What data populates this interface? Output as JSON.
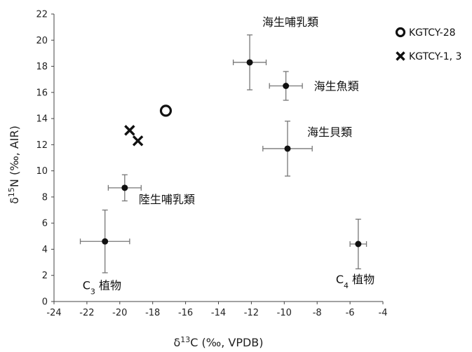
{
  "chart_data": {
    "type": "scatter",
    "xlabel": {
      "prefix": "δ",
      "sup": "13",
      "suffix": "C (‰, VPDB)"
    },
    "ylabel": {
      "prefix": "δ",
      "sup": "15",
      "suffix": "N (‰, AIR)"
    },
    "xlim": [
      -24,
      -4
    ],
    "ylim": [
      0,
      22
    ],
    "xticks": [
      -24,
      -22,
      -20,
      -18,
      -16,
      -14,
      -12,
      -10,
      -8,
      -6,
      -4
    ],
    "yticks": [
      0,
      2,
      4,
      6,
      8,
      10,
      12,
      14,
      16,
      18,
      20,
      22
    ],
    "grid": false,
    "legend_position": "top-right",
    "reference_groups": [
      {
        "label": "海生哺乳類",
        "x": -12.1,
        "y": 18.3,
        "xerr": 1.0,
        "yerr": 2.1
      },
      {
        "label": "海生魚類",
        "x": -9.9,
        "y": 16.5,
        "xerr": 1.0,
        "yerr": 1.1
      },
      {
        "label": "海生貝類",
        "x": -9.8,
        "y": 11.7,
        "xerr": 1.5,
        "yerr": 2.1
      },
      {
        "label": "陸生哺乳類",
        "x": -19.7,
        "y": 8.7,
        "xerr": 1.0,
        "yerr": 1.0
      },
      {
        "label": "植物",
        "subscript_prefix": {
          "base": "C",
          "sub": "3"
        },
        "x": -20.9,
        "y": 4.6,
        "xerr": 1.5,
        "yerr": 2.4
      },
      {
        "label": "植物",
        "subscript_prefix": {
          "base": "C",
          "sub": "4"
        },
        "x": -5.5,
        "y": 4.4,
        "xerr": 0.5,
        "yerr": 1.9
      }
    ],
    "samples": [
      {
        "name": "KGTCY-28",
        "marker": "circle",
        "points": [
          {
            "x": -17.2,
            "y": 14.6
          }
        ]
      },
      {
        "name": "KGTCY-1, 3",
        "marker": "cross",
        "points": [
          {
            "x": -19.4,
            "y": 13.1
          },
          {
            "x": -18.9,
            "y": 12.3
          }
        ]
      }
    ]
  }
}
